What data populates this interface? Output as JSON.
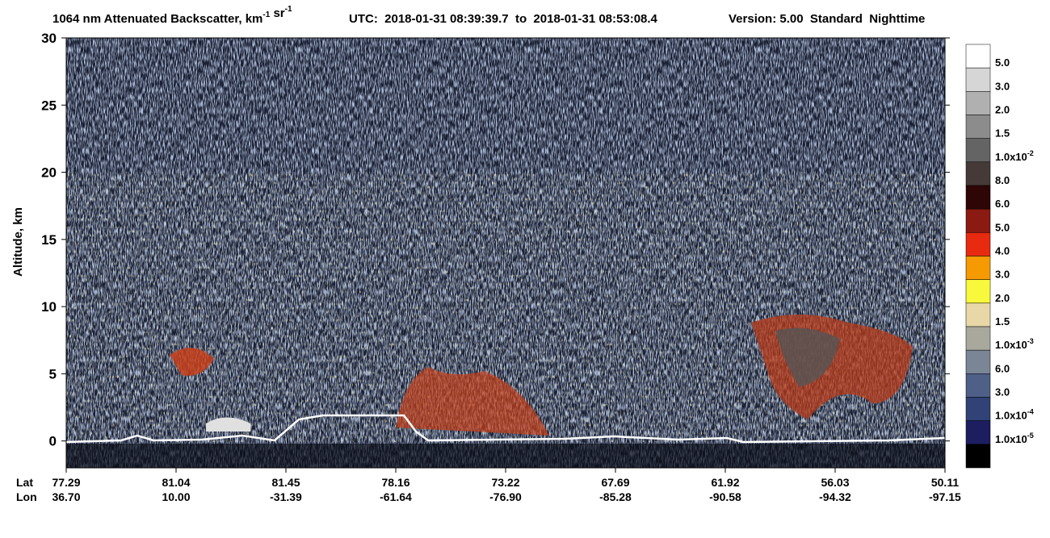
{
  "chart_data": {
    "type": "heatmap",
    "title_parts": [
      {
        "text": "1064 nm Attenuated Backscatter, km"
      },
      {
        "sup": "-1"
      },
      {
        "text": " sr"
      },
      {
        "sup": "-1"
      }
    ],
    "utc": "UTC:  2018-01-31 08:39:39.7  to  2018-01-31 08:53:08.4",
    "version": "Version: 5.00  Standard  Nighttime",
    "ylabel": "Altitude, km",
    "ylim": [
      -2,
      30
    ],
    "yticks": [
      0,
      5,
      10,
      15,
      20,
      25,
      30
    ],
    "x_rows": [
      {
        "label": "Lat",
        "values": [
          "77.29",
          "81.04",
          "81.45",
          "78.16",
          "73.22",
          "67.69",
          "61.92",
          "56.03",
          "50.11"
        ]
      },
      {
        "label": "Lon",
        "values": [
          "36.70",
          "10.00",
          "-31.39",
          "-61.64",
          "-76.90",
          "-85.28",
          "-90.58",
          "-94.32",
          "-97.15"
        ]
      }
    ],
    "colorbar": {
      "colors": [
        "#ffffff",
        "#d6d6d6",
        "#b0b0b0",
        "#8c8c8c",
        "#646464",
        "#463a38",
        "#2e0606",
        "#8a1a12",
        "#e82a10",
        "#f59a00",
        "#f8f83c",
        "#e8d8a8",
        "#a8a89c",
        "#7a8696",
        "#4e6088",
        "#304276",
        "#1c1e60",
        "#000000"
      ],
      "labels": [
        {
          "text": "5.0"
        },
        {
          "text": "3.0"
        },
        {
          "text": "2.0"
        },
        {
          "text": "1.5"
        },
        {
          "text": "1.0x10",
          "sup": "-2"
        },
        {
          "text": "8.0"
        },
        {
          "text": "6.0"
        },
        {
          "text": "5.0"
        },
        {
          "text": "4.0"
        },
        {
          "text": "3.0"
        },
        {
          "text": "2.0"
        },
        {
          "text": "1.5"
        },
        {
          "text": "1.0x10",
          "sup": "-3"
        },
        {
          "text": "6.0"
        },
        {
          "text": "3.0"
        },
        {
          "text": "1.0x10",
          "sup": "-4"
        },
        {
          "text": "1.0x10",
          "sup": "-5"
        }
      ]
    }
  }
}
